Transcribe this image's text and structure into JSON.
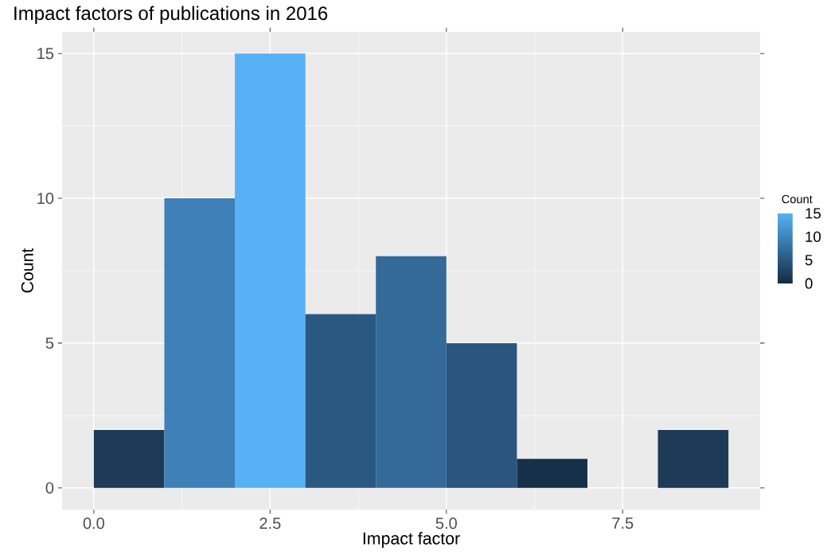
{
  "chart_data": {
    "type": "histogram",
    "title": "Impact factors of publications in 2016",
    "xlabel": "Impact factor",
    "ylabel": "Count",
    "bins": [
      0,
      1,
      2,
      3,
      4,
      5,
      6,
      7,
      8,
      9
    ],
    "values": [
      2,
      10,
      15,
      6,
      8,
      5,
      1,
      0,
      2
    ],
    "colors": [
      "#1d3a57",
      "#3f80b8",
      "#56b1f7",
      "#2b5880",
      "#336a98",
      "#2a557d",
      "#17304a",
      "#132b43",
      "#1d3a57"
    ],
    "xlim": [
      -0.45,
      9.45
    ],
    "ylim": [
      -0.75,
      15.75
    ],
    "xticks": [
      {
        "value": 0,
        "label": "0.0"
      },
      2.5,
      {
        "value": 5,
        "label": "5.0"
      },
      7.5
    ],
    "yticks": [
      0,
      5,
      10,
      15
    ],
    "grid": true,
    "clabel": "Count",
    "clim": [
      0,
      15
    ],
    "cticks": [
      0,
      5,
      10,
      15
    ]
  }
}
